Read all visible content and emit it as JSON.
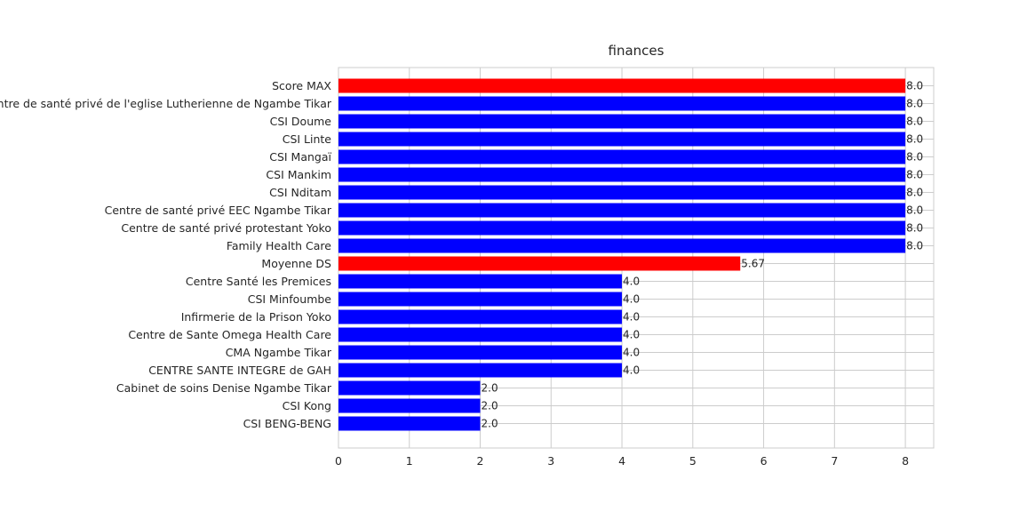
{
  "chart_data": {
    "type": "bar",
    "orientation": "horizontal",
    "title": "finances",
    "xlabel": "",
    "ylabel": "",
    "xlim": [
      0,
      8.4
    ],
    "xticks": [
      "0",
      "1",
      "2",
      "3",
      "4",
      "5",
      "6",
      "7",
      "8"
    ],
    "grid": true,
    "colors": {
      "highlight": "#ff0000",
      "default": "#0000ff"
    },
    "bars": [
      {
        "label": "Score MAX",
        "value": 8.0,
        "value_label": "8.0",
        "color": "#ff0000"
      },
      {
        "label": "Centre de santé privé  de l'eglise Lutherienne de Ngambe Tikar",
        "value": 8.0,
        "value_label": "8.0",
        "color": "#0000ff"
      },
      {
        "label": "CSI Doume",
        "value": 8.0,
        "value_label": "8.0",
        "color": "#0000ff"
      },
      {
        "label": "CSI Linte",
        "value": 8.0,
        "value_label": "8.0",
        "color": "#0000ff"
      },
      {
        "label": "CSI Mangaï",
        "value": 8.0,
        "value_label": "8.0",
        "color": "#0000ff"
      },
      {
        "label": "CSI Mankim",
        "value": 8.0,
        "value_label": "8.0",
        "color": "#0000ff"
      },
      {
        "label": "CSI Nditam",
        "value": 8.0,
        "value_label": "8.0",
        "color": "#0000ff"
      },
      {
        "label": "Centre de santé privé EEC Ngambe Tikar",
        "value": 8.0,
        "value_label": "8.0",
        "color": "#0000ff"
      },
      {
        "label": "Centre de santé privé protestant Yoko",
        "value": 8.0,
        "value_label": "8.0",
        "color": "#0000ff"
      },
      {
        "label": "Family Health Care",
        "value": 8.0,
        "value_label": "8.0",
        "color": "#0000ff"
      },
      {
        "label": "Moyenne DS",
        "value": 5.67,
        "value_label": "5.67",
        "color": "#ff0000"
      },
      {
        "label": "Centre Santé les Premices",
        "value": 4.0,
        "value_label": "4.0",
        "color": "#0000ff"
      },
      {
        "label": "CSI Minfoumbe",
        "value": 4.0,
        "value_label": "4.0",
        "color": "#0000ff"
      },
      {
        "label": "Infirmerie de la Prison Yoko",
        "value": 4.0,
        "value_label": "4.0",
        "color": "#0000ff"
      },
      {
        "label": "Centre de Sante Omega Health  Care",
        "value": 4.0,
        "value_label": "4.0",
        "color": "#0000ff"
      },
      {
        "label": "CMA Ngambe Tikar",
        "value": 4.0,
        "value_label": "4.0",
        "color": "#0000ff"
      },
      {
        "label": "CENTRE SANTE INTEGRE  de GAH",
        "value": 4.0,
        "value_label": "4.0",
        "color": "#0000ff"
      },
      {
        "label": "Cabinet de soins Denise Ngambe Tikar",
        "value": 2.0,
        "value_label": "2.0",
        "color": "#0000ff"
      },
      {
        "label": "CSI Kong",
        "value": 2.0,
        "value_label": "2.0",
        "color": "#0000ff"
      },
      {
        "label": "CSI BENG-BENG",
        "value": 2.0,
        "value_label": "2.0",
        "color": "#0000ff"
      }
    ]
  }
}
